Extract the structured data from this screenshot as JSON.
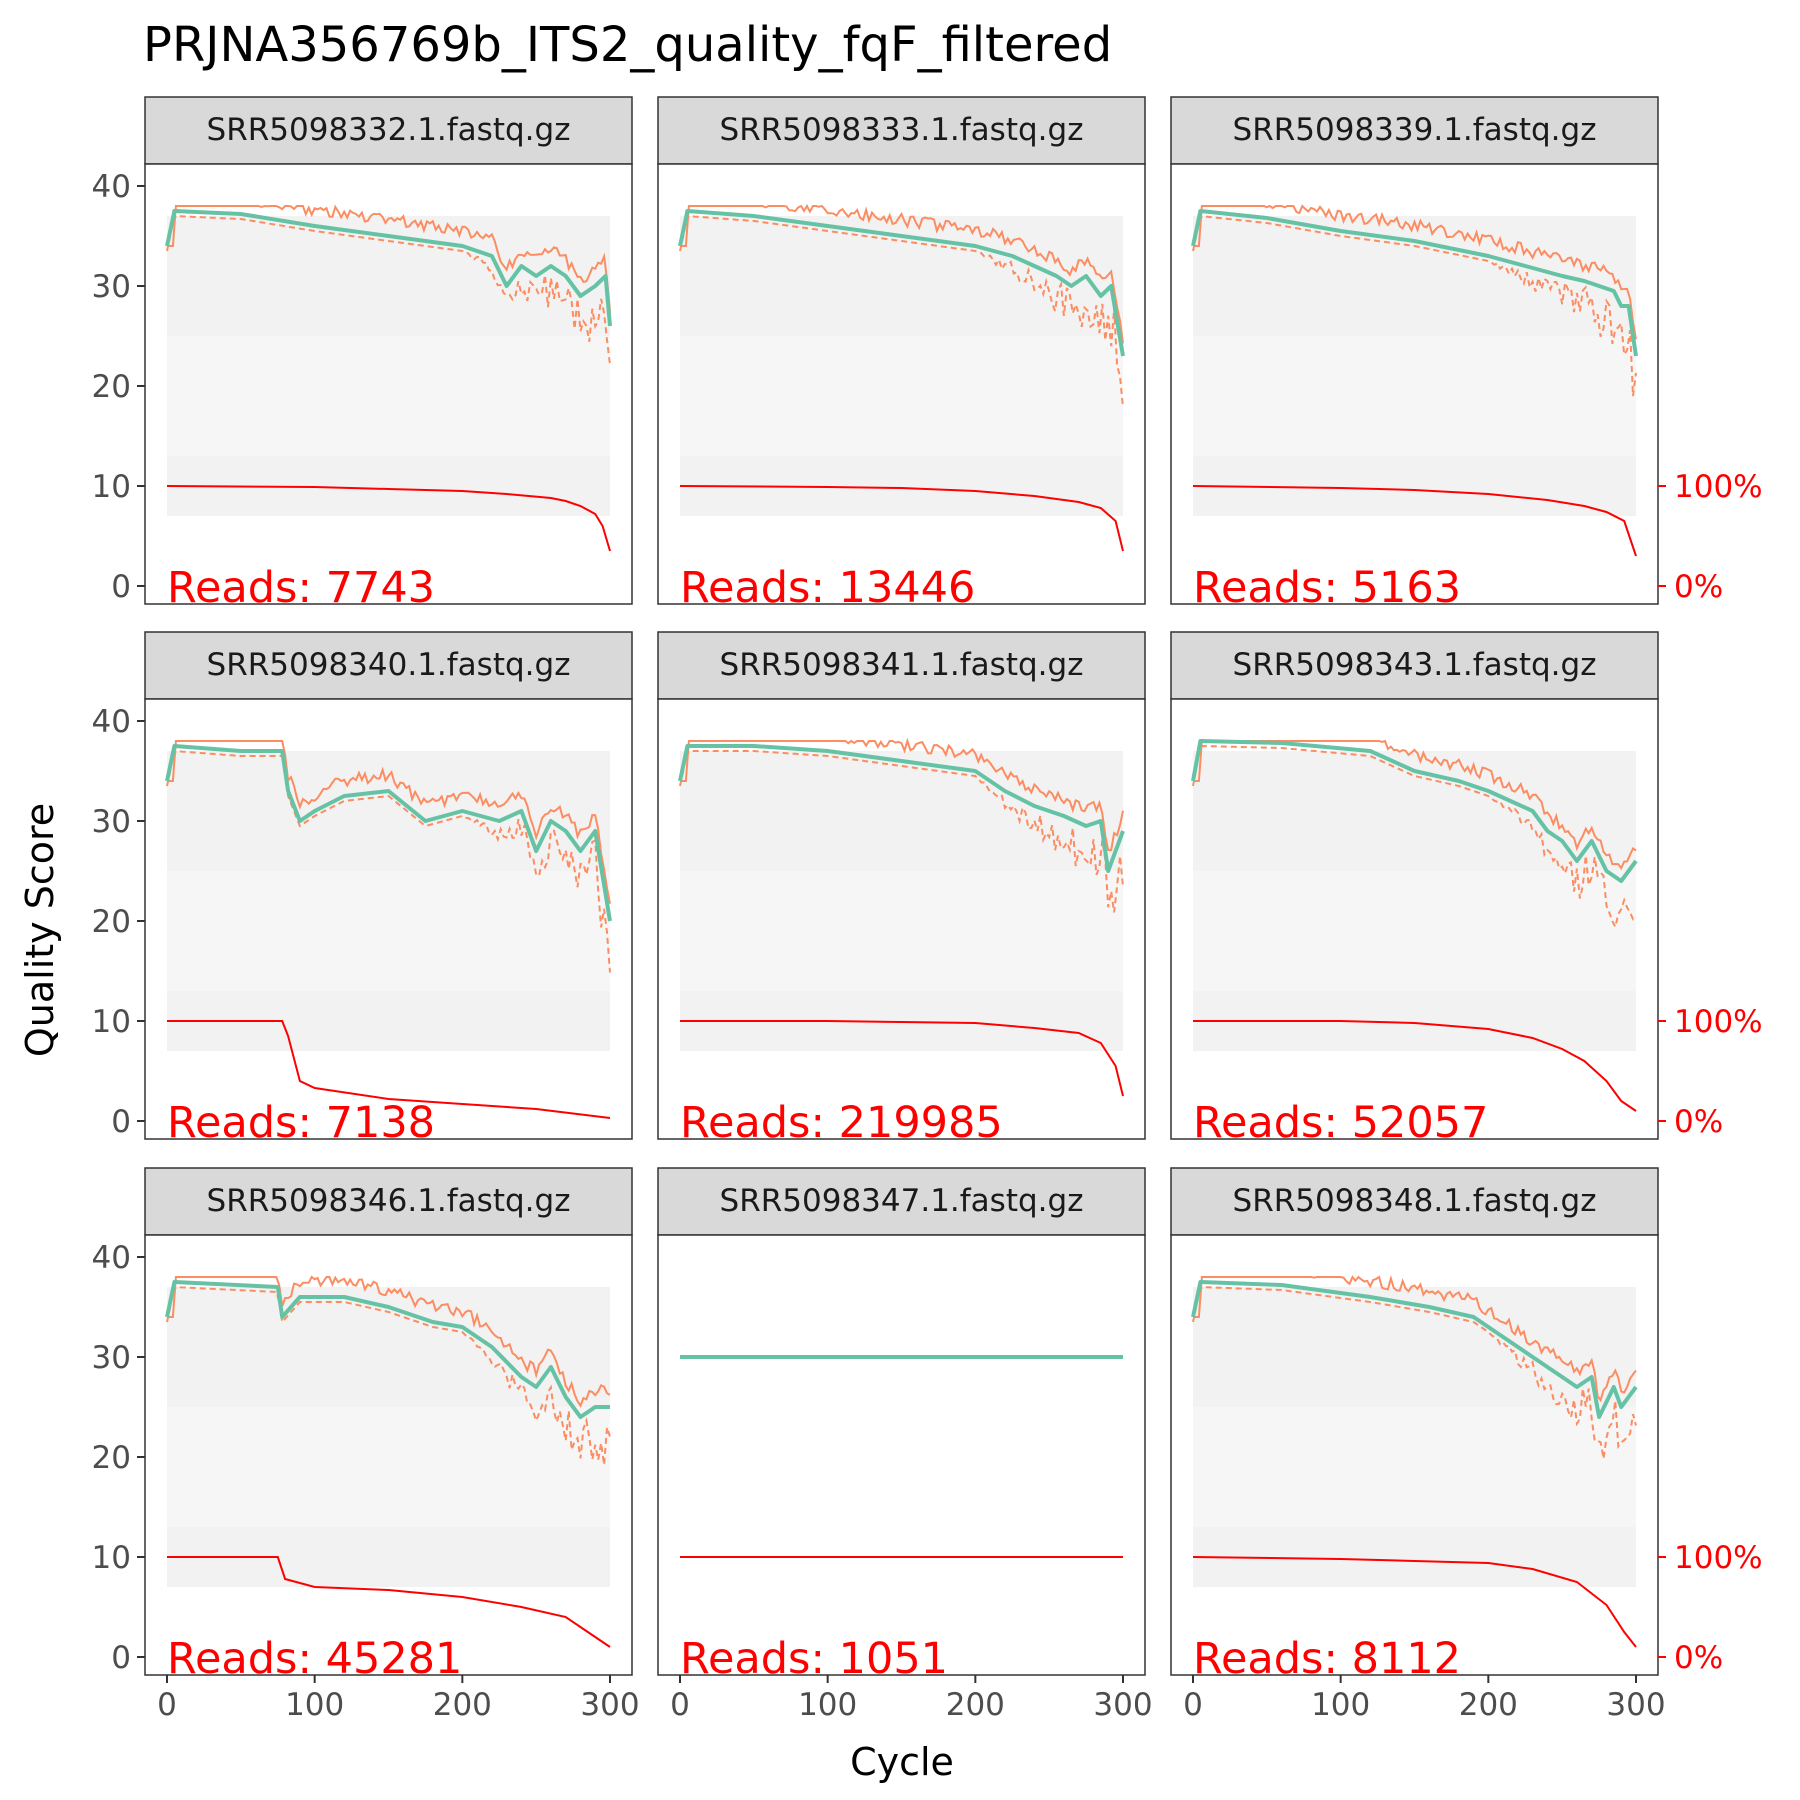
{
  "title": "PRJNA356769b_ITS2_quality_fqF_filtered",
  "xlabel": "Cycle",
  "ylabel": "Quality Score",
  "x_ticks": [
    "0",
    "100",
    "200",
    "300"
  ],
  "y_ticks": [
    "0",
    "10",
    "20",
    "30",
    "40"
  ],
  "right_ticks": [
    "0%",
    "100%"
  ],
  "reads_prefix": "Reads:",
  "colors": {
    "mean": "#66C2A5",
    "quantile": "#FC8D62",
    "cumulative": "#FF0000",
    "strip_fill": "#D9D9D9",
    "heat": "#EDEDED"
  },
  "chart_data": {
    "type": "line",
    "xlim": [
      0,
      300
    ],
    "ylim": [
      0,
      40
    ],
    "right_axis": {
      "ticks": [
        "0%",
        "100%"
      ],
      "maps_to_quality": [
        0,
        10
      ]
    },
    "panels": [
      {
        "name": "SRR5098332.1.fastq.gz",
        "reads": "7743",
        "mean": [
          [
            0,
            34
          ],
          [
            5,
            37.5
          ],
          [
            50,
            37.2
          ],
          [
            100,
            36
          ],
          [
            150,
            35
          ],
          [
            200,
            34
          ],
          [
            220,
            33
          ],
          [
            230,
            30
          ],
          [
            240,
            32
          ],
          [
            250,
            31
          ],
          [
            260,
            32
          ],
          [
            270,
            31
          ],
          [
            280,
            29
          ],
          [
            290,
            30
          ],
          [
            297,
            31
          ],
          [
            300,
            26
          ]
        ],
        "cumulative": [
          [
            0,
            100
          ],
          [
            100,
            99
          ],
          [
            150,
            97
          ],
          [
            200,
            95
          ],
          [
            230,
            92
          ],
          [
            260,
            88
          ],
          [
            270,
            85
          ],
          [
            280,
            80
          ],
          [
            290,
            72
          ],
          [
            295,
            60
          ],
          [
            300,
            35
          ]
        ]
      },
      {
        "name": "SRR5098333.1.fastq.gz",
        "reads": "13446",
        "mean": [
          [
            0,
            34
          ],
          [
            5,
            37.5
          ],
          [
            50,
            37
          ],
          [
            100,
            36
          ],
          [
            150,
            35
          ],
          [
            200,
            34
          ],
          [
            225,
            33
          ],
          [
            240,
            32
          ],
          [
            255,
            31
          ],
          [
            265,
            30
          ],
          [
            275,
            31
          ],
          [
            285,
            29
          ],
          [
            292,
            30
          ],
          [
            300,
            23
          ]
        ],
        "cumulative": [
          [
            0,
            100
          ],
          [
            100,
            99
          ],
          [
            150,
            98
          ],
          [
            200,
            95
          ],
          [
            240,
            90
          ],
          [
            270,
            84
          ],
          [
            285,
            78
          ],
          [
            295,
            65
          ],
          [
            300,
            35
          ]
        ]
      },
      {
        "name": "SRR5098339.1.fastq.gz",
        "reads": "5163",
        "mean": [
          [
            0,
            34
          ],
          [
            5,
            37.5
          ],
          [
            50,
            36.8
          ],
          [
            100,
            35.5
          ],
          [
            150,
            34.5
          ],
          [
            200,
            33
          ],
          [
            225,
            32
          ],
          [
            250,
            31
          ],
          [
            265,
            30.5
          ],
          [
            275,
            30
          ],
          [
            285,
            29.5
          ],
          [
            290,
            28
          ],
          [
            295,
            28
          ],
          [
            300,
            23
          ]
        ],
        "cumulative": [
          [
            0,
            100
          ],
          [
            100,
            98
          ],
          [
            150,
            96
          ],
          [
            200,
            92
          ],
          [
            240,
            86
          ],
          [
            265,
            80
          ],
          [
            280,
            74
          ],
          [
            292,
            65
          ],
          [
            300,
            30
          ]
        ]
      },
      {
        "name": "SRR5098340.1.fastq.gz",
        "reads": "7138",
        "mean": [
          [
            0,
            34
          ],
          [
            5,
            37.5
          ],
          [
            50,
            37
          ],
          [
            78,
            37
          ],
          [
            82,
            33
          ],
          [
            90,
            30
          ],
          [
            100,
            31
          ],
          [
            120,
            32.5
          ],
          [
            150,
            33
          ],
          [
            175,
            30
          ],
          [
            200,
            31
          ],
          [
            225,
            30
          ],
          [
            240,
            31
          ],
          [
            250,
            27
          ],
          [
            260,
            30
          ],
          [
            270,
            29
          ],
          [
            280,
            27
          ],
          [
            290,
            29
          ],
          [
            300,
            20
          ]
        ],
        "cumulative": [
          [
            0,
            100
          ],
          [
            78,
            100
          ],
          [
            82,
            85
          ],
          [
            90,
            40
          ],
          [
            100,
            33
          ],
          [
            150,
            22
          ],
          [
            200,
            17
          ],
          [
            250,
            12
          ],
          [
            300,
            3
          ]
        ]
      },
      {
        "name": "SRR5098341.1.fastq.gz",
        "reads": "219985",
        "mean": [
          [
            0,
            34
          ],
          [
            5,
            37.5
          ],
          [
            50,
            37.5
          ],
          [
            100,
            37
          ],
          [
            150,
            36
          ],
          [
            200,
            35
          ],
          [
            220,
            33
          ],
          [
            240,
            31.5
          ],
          [
            260,
            30.5
          ],
          [
            275,
            29.5
          ],
          [
            285,
            30
          ],
          [
            290,
            25
          ],
          [
            295,
            27
          ],
          [
            300,
            29
          ]
        ],
        "cumulative": [
          [
            0,
            100
          ],
          [
            100,
            100
          ],
          [
            150,
            99
          ],
          [
            200,
            98
          ],
          [
            240,
            93
          ],
          [
            270,
            88
          ],
          [
            285,
            78
          ],
          [
            295,
            55
          ],
          [
            300,
            25
          ]
        ]
      },
      {
        "name": "SRR5098343.1.fastq.gz",
        "reads": "52057",
        "mean": [
          [
            0,
            34
          ],
          [
            5,
            38
          ],
          [
            60,
            37.8
          ],
          [
            120,
            37
          ],
          [
            150,
            35
          ],
          [
            180,
            34
          ],
          [
            200,
            33
          ],
          [
            215,
            32
          ],
          [
            230,
            31
          ],
          [
            240,
            29
          ],
          [
            250,
            28
          ],
          [
            260,
            26
          ],
          [
            270,
            28
          ],
          [
            280,
            25
          ],
          [
            290,
            24
          ],
          [
            300,
            26
          ]
        ],
        "cumulative": [
          [
            0,
            100
          ],
          [
            100,
            100
          ],
          [
            150,
            98
          ],
          [
            200,
            92
          ],
          [
            230,
            83
          ],
          [
            250,
            72
          ],
          [
            265,
            60
          ],
          [
            280,
            40
          ],
          [
            290,
            20
          ],
          [
            300,
            10
          ]
        ]
      },
      {
        "name": "SRR5098346.1.fastq.gz",
        "reads": "45281",
        "mean": [
          [
            0,
            34
          ],
          [
            5,
            37.5
          ],
          [
            75,
            37
          ],
          [
            78,
            34
          ],
          [
            90,
            36
          ],
          [
            120,
            36
          ],
          [
            150,
            35
          ],
          [
            180,
            33.5
          ],
          [
            200,
            33
          ],
          [
            220,
            31
          ],
          [
            240,
            28
          ],
          [
            250,
            27
          ],
          [
            260,
            29
          ],
          [
            270,
            26
          ],
          [
            280,
            24
          ],
          [
            290,
            25
          ],
          [
            300,
            25
          ]
        ],
        "cumulative": [
          [
            0,
            100
          ],
          [
            75,
            100
          ],
          [
            80,
            78
          ],
          [
            100,
            70
          ],
          [
            150,
            67
          ],
          [
            200,
            60
          ],
          [
            240,
            50
          ],
          [
            270,
            40
          ],
          [
            285,
            25
          ],
          [
            300,
            10
          ]
        ]
      },
      {
        "name": "SRR5098347.1.fastq.gz",
        "reads": "1051",
        "mean": [
          [
            0,
            30
          ],
          [
            300,
            30
          ]
        ],
        "cumulative": [
          [
            0,
            100
          ],
          [
            300,
            100
          ]
        ]
      },
      {
        "name": "SRR5098348.1.fastq.gz",
        "reads": "8112",
        "mean": [
          [
            0,
            34
          ],
          [
            5,
            37.5
          ],
          [
            60,
            37.2
          ],
          [
            120,
            36
          ],
          [
            160,
            35
          ],
          [
            190,
            34
          ],
          [
            210,
            32
          ],
          [
            230,
            30
          ],
          [
            250,
            28
          ],
          [
            260,
            27
          ],
          [
            270,
            28
          ],
          [
            275,
            24
          ],
          [
            285,
            27
          ],
          [
            290,
            25
          ],
          [
            300,
            27
          ]
        ],
        "cumulative": [
          [
            0,
            100
          ],
          [
            100,
            98
          ],
          [
            150,
            96
          ],
          [
            200,
            94
          ],
          [
            230,
            88
          ],
          [
            260,
            75
          ],
          [
            280,
            52
          ],
          [
            292,
            25
          ],
          [
            300,
            10
          ]
        ]
      }
    ]
  }
}
